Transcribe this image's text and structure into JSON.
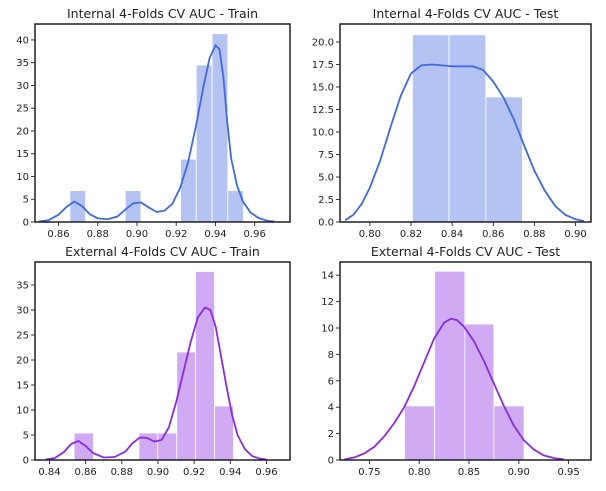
{
  "chart_data": [
    {
      "type": "histogram",
      "title": "Internal 4-Folds CV AUC - Train",
      "color": "#4169e1",
      "bar_fill": "#b4c3f2",
      "xlim": [
        0.848,
        0.978
      ],
      "ylim": [
        0,
        43.5
      ],
      "xticks": [
        0.86,
        0.88,
        0.9,
        0.92,
        0.94,
        0.96
      ],
      "xtick_labels": [
        "0.86",
        "0.88",
        "0.90",
        "0.92",
        "0.94",
        "0.96"
      ],
      "yticks": [
        0,
        5,
        10,
        15,
        20,
        25,
        30,
        35,
        40
      ],
      "ytick_labels": [
        "0",
        "5",
        "10",
        "15",
        "20",
        "25",
        "30",
        "35",
        "40"
      ],
      "bins": [
        {
          "x0": 0.8658,
          "x1": 0.8738,
          "value": 6.9
        },
        {
          "x0": 0.894,
          "x1": 0.902,
          "value": 6.9
        },
        {
          "x0": 0.9222,
          "x1": 0.9302,
          "value": 13.8
        },
        {
          "x0": 0.9302,
          "x1": 0.9383,
          "value": 34.5
        },
        {
          "x0": 0.9383,
          "x1": 0.9463,
          "value": 41.4
        },
        {
          "x0": 0.9463,
          "x1": 0.9543,
          "value": 6.9
        }
      ],
      "kde": [
        [
          0.85,
          0.1
        ],
        [
          0.855,
          0.4
        ],
        [
          0.86,
          1.6
        ],
        [
          0.864,
          3.3
        ],
        [
          0.868,
          4.5
        ],
        [
          0.872,
          3.5
        ],
        [
          0.876,
          1.7
        ],
        [
          0.88,
          0.8
        ],
        [
          0.885,
          0.6
        ],
        [
          0.89,
          1.2
        ],
        [
          0.894,
          2.7
        ],
        [
          0.898,
          4.1
        ],
        [
          0.902,
          4.3
        ],
        [
          0.906,
          3.2
        ],
        [
          0.91,
          2.2
        ],
        [
          0.914,
          2.5
        ],
        [
          0.918,
          4.0
        ],
        [
          0.922,
          7.5
        ],
        [
          0.926,
          13.0
        ],
        [
          0.93,
          21.0
        ],
        [
          0.934,
          30.0
        ],
        [
          0.937,
          36.0
        ],
        [
          0.94,
          38.8
        ],
        [
          0.942,
          38.0
        ],
        [
          0.944,
          32.0
        ],
        [
          0.946,
          22.0
        ],
        [
          0.948,
          14.0
        ],
        [
          0.951,
          8.0
        ],
        [
          0.954,
          4.5
        ],
        [
          0.958,
          2.0
        ],
        [
          0.962,
          0.9
        ],
        [
          0.966,
          0.3
        ],
        [
          0.97,
          0.1
        ]
      ]
    },
    {
      "type": "histogram",
      "title": "Internal 4-Folds CV AUC - Test",
      "color": "#4169e1",
      "bar_fill": "#b4c3f2",
      "xlim": [
        0.7855,
        0.9075
      ],
      "ylim": [
        0,
        22
      ],
      "xticks": [
        0.8,
        0.82,
        0.84,
        0.86,
        0.88,
        0.9
      ],
      "xtick_labels": [
        "0.80",
        "0.82",
        "0.84",
        "0.86",
        "0.88",
        "0.90"
      ],
      "yticks": [
        0.0,
        2.5,
        5.0,
        7.5,
        10.0,
        12.5,
        15.0,
        17.5,
        20.0
      ],
      "ytick_labels": [
        "0.0",
        "2.5",
        "5.0",
        "7.5",
        "10.0",
        "12.5",
        "15.0",
        "17.5",
        "20.0"
      ],
      "bins": [
        {
          "x0": 0.8207,
          "x1": 0.8385,
          "value": 20.8
        },
        {
          "x0": 0.8385,
          "x1": 0.8564,
          "value": 20.8
        },
        {
          "x0": 0.8564,
          "x1": 0.8742,
          "value": 13.9
        }
      ],
      "kde": [
        [
          0.788,
          0.2
        ],
        [
          0.792,
          0.8
        ],
        [
          0.796,
          2.0
        ],
        [
          0.8,
          3.8
        ],
        [
          0.805,
          6.8
        ],
        [
          0.81,
          10.5
        ],
        [
          0.815,
          14.0
        ],
        [
          0.82,
          16.5
        ],
        [
          0.825,
          17.4
        ],
        [
          0.83,
          17.5
        ],
        [
          0.835,
          17.4
        ],
        [
          0.84,
          17.3
        ],
        [
          0.845,
          17.3
        ],
        [
          0.85,
          17.3
        ],
        [
          0.855,
          16.9
        ],
        [
          0.86,
          15.6
        ],
        [
          0.865,
          13.8
        ],
        [
          0.87,
          11.4
        ],
        [
          0.875,
          8.5
        ],
        [
          0.88,
          5.7
        ],
        [
          0.885,
          3.5
        ],
        [
          0.89,
          1.8
        ],
        [
          0.895,
          0.8
        ],
        [
          0.9,
          0.3
        ],
        [
          0.904,
          0.1
        ]
      ]
    },
    {
      "type": "histogram",
      "title": "External 4-Folds CV AUC - Train",
      "color": "#8a2be2",
      "bar_fill": "#d0aaf2",
      "xlim": [
        0.832,
        0.973
      ],
      "ylim": [
        0,
        39.6
      ],
      "xticks": [
        0.84,
        0.86,
        0.88,
        0.9,
        0.92,
        0.94,
        0.96
      ],
      "xtick_labels": [
        "0.84",
        "0.86",
        "0.88",
        "0.90",
        "0.92",
        "0.94",
        "0.96"
      ],
      "yticks": [
        0,
        5,
        10,
        15,
        20,
        25,
        30,
        35
      ],
      "ytick_labels": [
        "0",
        "5",
        "10",
        "15",
        "20",
        "25",
        "30",
        "35"
      ],
      "bins": [
        {
          "x0": 0.8536,
          "x1": 0.8643,
          "value": 5.4
        },
        {
          "x0": 0.8895,
          "x1": 0.8999,
          "value": 5.4
        },
        {
          "x0": 0.8999,
          "x1": 0.9104,
          "value": 5.4
        },
        {
          "x0": 0.9104,
          "x1": 0.9208,
          "value": 21.6
        },
        {
          "x0": 0.9208,
          "x1": 0.9313,
          "value": 37.7
        },
        {
          "x0": 0.9313,
          "x1": 0.9417,
          "value": 10.8
        }
      ],
      "kde": [
        [
          0.838,
          0.1
        ],
        [
          0.843,
          0.4
        ],
        [
          0.848,
          1.6
        ],
        [
          0.852,
          3.2
        ],
        [
          0.856,
          3.8
        ],
        [
          0.86,
          2.8
        ],
        [
          0.864,
          1.4
        ],
        [
          0.87,
          0.5
        ],
        [
          0.876,
          0.6
        ],
        [
          0.882,
          1.7
        ],
        [
          0.886,
          3.4
        ],
        [
          0.89,
          4.5
        ],
        [
          0.894,
          4.4
        ],
        [
          0.898,
          3.7
        ],
        [
          0.902,
          4.0
        ],
        [
          0.906,
          6.5
        ],
        [
          0.91,
          11.5
        ],
        [
          0.914,
          17.5
        ],
        [
          0.918,
          23.5
        ],
        [
          0.922,
          28.5
        ],
        [
          0.926,
          30.5
        ],
        [
          0.929,
          30.0
        ],
        [
          0.932,
          26.5
        ],
        [
          0.935,
          20.5
        ],
        [
          0.938,
          14.5
        ],
        [
          0.941,
          9.0
        ],
        [
          0.944,
          5.0
        ],
        [
          0.948,
          2.2
        ],
        [
          0.952,
          0.8
        ],
        [
          0.956,
          0.3
        ],
        [
          0.96,
          0.1
        ]
      ]
    },
    {
      "type": "histogram",
      "title": "External 4-Folds CV AUC - Test",
      "color": "#8a2be2",
      "bar_fill": "#d0aaf2",
      "xlim": [
        0.7205,
        0.9725
      ],
      "ylim": [
        0,
        15
      ],
      "xticks": [
        0.75,
        0.8,
        0.85,
        0.9,
        0.95
      ],
      "xtick_labels": [
        "0.75",
        "0.80",
        "0.85",
        "0.90",
        "0.95"
      ],
      "yticks": [
        0,
        2,
        4,
        6,
        8,
        10,
        12,
        14
      ],
      "ytick_labels": [
        "0",
        "2",
        "4",
        "6",
        "8",
        "10",
        "12",
        "14"
      ],
      "bins": [
        {
          "x0": 0.7853,
          "x1": 0.8156,
          "value": 4.1
        },
        {
          "x0": 0.8156,
          "x1": 0.8459,
          "value": 14.3
        },
        {
          "x0": 0.8459,
          "x1": 0.875,
          "value": 10.3
        },
        {
          "x0": 0.875,
          "x1": 0.9053,
          "value": 4.1
        }
      ],
      "kde": [
        [
          0.725,
          0.05
        ],
        [
          0.735,
          0.2
        ],
        [
          0.745,
          0.5
        ],
        [
          0.755,
          1.0
        ],
        [
          0.765,
          1.8
        ],
        [
          0.775,
          2.8
        ],
        [
          0.785,
          4.0
        ],
        [
          0.795,
          5.6
        ],
        [
          0.805,
          7.4
        ],
        [
          0.815,
          9.2
        ],
        [
          0.825,
          10.4
        ],
        [
          0.832,
          10.7
        ],
        [
          0.838,
          10.6
        ],
        [
          0.845,
          10.1
        ],
        [
          0.855,
          9.0
        ],
        [
          0.865,
          7.5
        ],
        [
          0.875,
          5.8
        ],
        [
          0.885,
          4.1
        ],
        [
          0.895,
          2.6
        ],
        [
          0.905,
          1.5
        ],
        [
          0.915,
          0.8
        ],
        [
          0.925,
          0.35
        ],
        [
          0.935,
          0.15
        ],
        [
          0.945,
          0.05
        ]
      ]
    }
  ]
}
